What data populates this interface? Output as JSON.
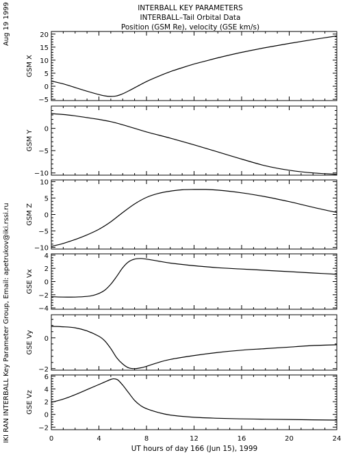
{
  "header": {
    "lines": [
      "INTERBALL KEY PARAMETERS",
      "INTERBALL–Tail Orbital Data",
      "Position (GSM Re), velocity (GSE km/s)"
    ]
  },
  "side_labels": {
    "date": "Aug 19 1999",
    "credit": "IKI RAN INTERBALL Key Parameter Group, Email: apetrukov@iki.rssi.ru"
  },
  "chart_data": {
    "type": "line",
    "xlabel": "UT hours of day 166 (Jun 15), 1999",
    "xlim": [
      0,
      24
    ],
    "xticks": [
      0,
      4,
      8,
      12,
      16,
      20,
      24
    ],
    "xtick_labels": [
      "0",
      "4",
      "8",
      "12",
      "16",
      "20",
      "24"
    ],
    "line_color": "#000000",
    "grid": false,
    "panels": [
      {
        "name": "GSM X",
        "ylim": [
          -5.5,
          21
        ],
        "yticks": [
          -5,
          0,
          5,
          10,
          15,
          20
        ],
        "ytick_labels": [
          "−5",
          "0",
          "5",
          "10",
          "15",
          "20"
        ],
        "x": [
          0,
          1,
          2,
          3,
          4,
          4.5,
          5,
          5.5,
          6,
          6.5,
          7,
          8,
          9,
          10,
          11,
          12,
          13,
          14,
          16,
          18,
          20,
          22,
          24
        ],
        "y": [
          2,
          0.9,
          -0.5,
          -1.9,
          -3.2,
          -3.7,
          -3.9,
          -3.7,
          -2.9,
          -1.8,
          -0.6,
          1.8,
          3.8,
          5.6,
          7.1,
          8.5,
          9.7,
          10.9,
          13,
          14.8,
          16.4,
          17.9,
          19.3
        ]
      },
      {
        "name": "GSM Y",
        "ylim": [
          -10.5,
          5
        ],
        "yticks": [
          -10,
          -5,
          0
        ],
        "ytick_labels": [
          "−10",
          "−5",
          "0"
        ],
        "x": [
          0,
          1,
          2,
          3,
          4,
          5,
          6,
          7,
          8,
          10,
          12,
          14,
          16,
          18,
          20,
          22,
          24
        ],
        "y": [
          3.3,
          3.1,
          2.8,
          2.4,
          2.0,
          1.5,
          0.8,
          0.0,
          -0.8,
          -2.2,
          -3.7,
          -5.3,
          -6.9,
          -8.4,
          -9.4,
          -10.0,
          -10.3
        ]
      },
      {
        "name": "GSM Z",
        "ylim": [
          -10.5,
          10.5
        ],
        "yticks": [
          -10,
          -5,
          0,
          5,
          10
        ],
        "ytick_labels": [
          "−10",
          "−5",
          "0",
          "5",
          "10"
        ],
        "x": [
          0,
          1,
          2,
          3,
          4,
          5,
          6,
          7,
          8,
          9,
          10,
          11,
          12,
          13,
          14,
          16,
          18,
          20,
          22,
          24
        ],
        "y": [
          -9.7,
          -8.8,
          -7.6,
          -6.2,
          -4.5,
          -2.2,
          0.6,
          3.2,
          5.2,
          6.4,
          7.1,
          7.5,
          7.6,
          7.6,
          7.4,
          6.6,
          5.4,
          3.9,
          2.2,
          0.6
        ]
      },
      {
        "name": "GSE Vx",
        "ylim": [
          -4.2,
          4.2
        ],
        "yticks": [
          -4,
          -2,
          0,
          2,
          4
        ],
        "ytick_labels": [
          "−4",
          "−2",
          "0",
          "2",
          "4"
        ],
        "x": [
          0,
          1,
          2,
          3,
          3.5,
          4,
          4.5,
          5,
          5.5,
          6,
          6.5,
          7,
          7.5,
          8,
          9,
          10,
          12,
          14,
          16,
          18,
          20,
          22,
          24
        ],
        "y": [
          -2.3,
          -2.35,
          -2.35,
          -2.25,
          -2.1,
          -1.8,
          -1.3,
          -0.4,
          0.8,
          2.1,
          3.0,
          3.4,
          3.5,
          3.4,
          3.1,
          2.8,
          2.4,
          2.1,
          1.9,
          1.7,
          1.5,
          1.3,
          1.1
        ]
      },
      {
        "name": "GSE Vy",
        "ylim": [
          -2.1,
          1.5
        ],
        "yticks": [
          -2,
          0
        ],
        "ytick_labels": [
          "−2",
          "0"
        ],
        "x": [
          0,
          1,
          2,
          3,
          4,
          4.5,
          5,
          5.5,
          6,
          6.5,
          7,
          7.5,
          8,
          9,
          10,
          12,
          14,
          16,
          18,
          20,
          22,
          24
        ],
        "y": [
          0.75,
          0.72,
          0.65,
          0.45,
          0.1,
          -0.2,
          -0.7,
          -1.3,
          -1.7,
          -1.95,
          -2.0,
          -1.95,
          -1.85,
          -1.6,
          -1.4,
          -1.15,
          -0.95,
          -0.8,
          -0.7,
          -0.6,
          -0.5,
          -0.45
        ]
      },
      {
        "name": "GSE Vz",
        "ylim": [
          -2.4,
          6.2
        ],
        "yticks": [
          -2,
          0,
          2,
          4,
          6
        ],
        "ytick_labels": [
          "−2",
          "0",
          "2",
          "4",
          "6"
        ],
        "x": [
          0,
          1,
          2,
          3,
          4,
          4.5,
          5,
          5.3,
          5.6,
          6,
          6.5,
          7,
          7.5,
          8,
          9,
          10,
          12,
          14,
          16,
          18,
          20,
          22,
          24
        ],
        "y": [
          1.9,
          2.4,
          3.1,
          3.9,
          4.7,
          5.1,
          5.5,
          5.6,
          5.4,
          4.6,
          3.4,
          2.2,
          1.4,
          0.9,
          0.3,
          -0.1,
          -0.45,
          -0.6,
          -0.7,
          -0.75,
          -0.8,
          -0.85,
          -0.9
        ]
      }
    ]
  }
}
